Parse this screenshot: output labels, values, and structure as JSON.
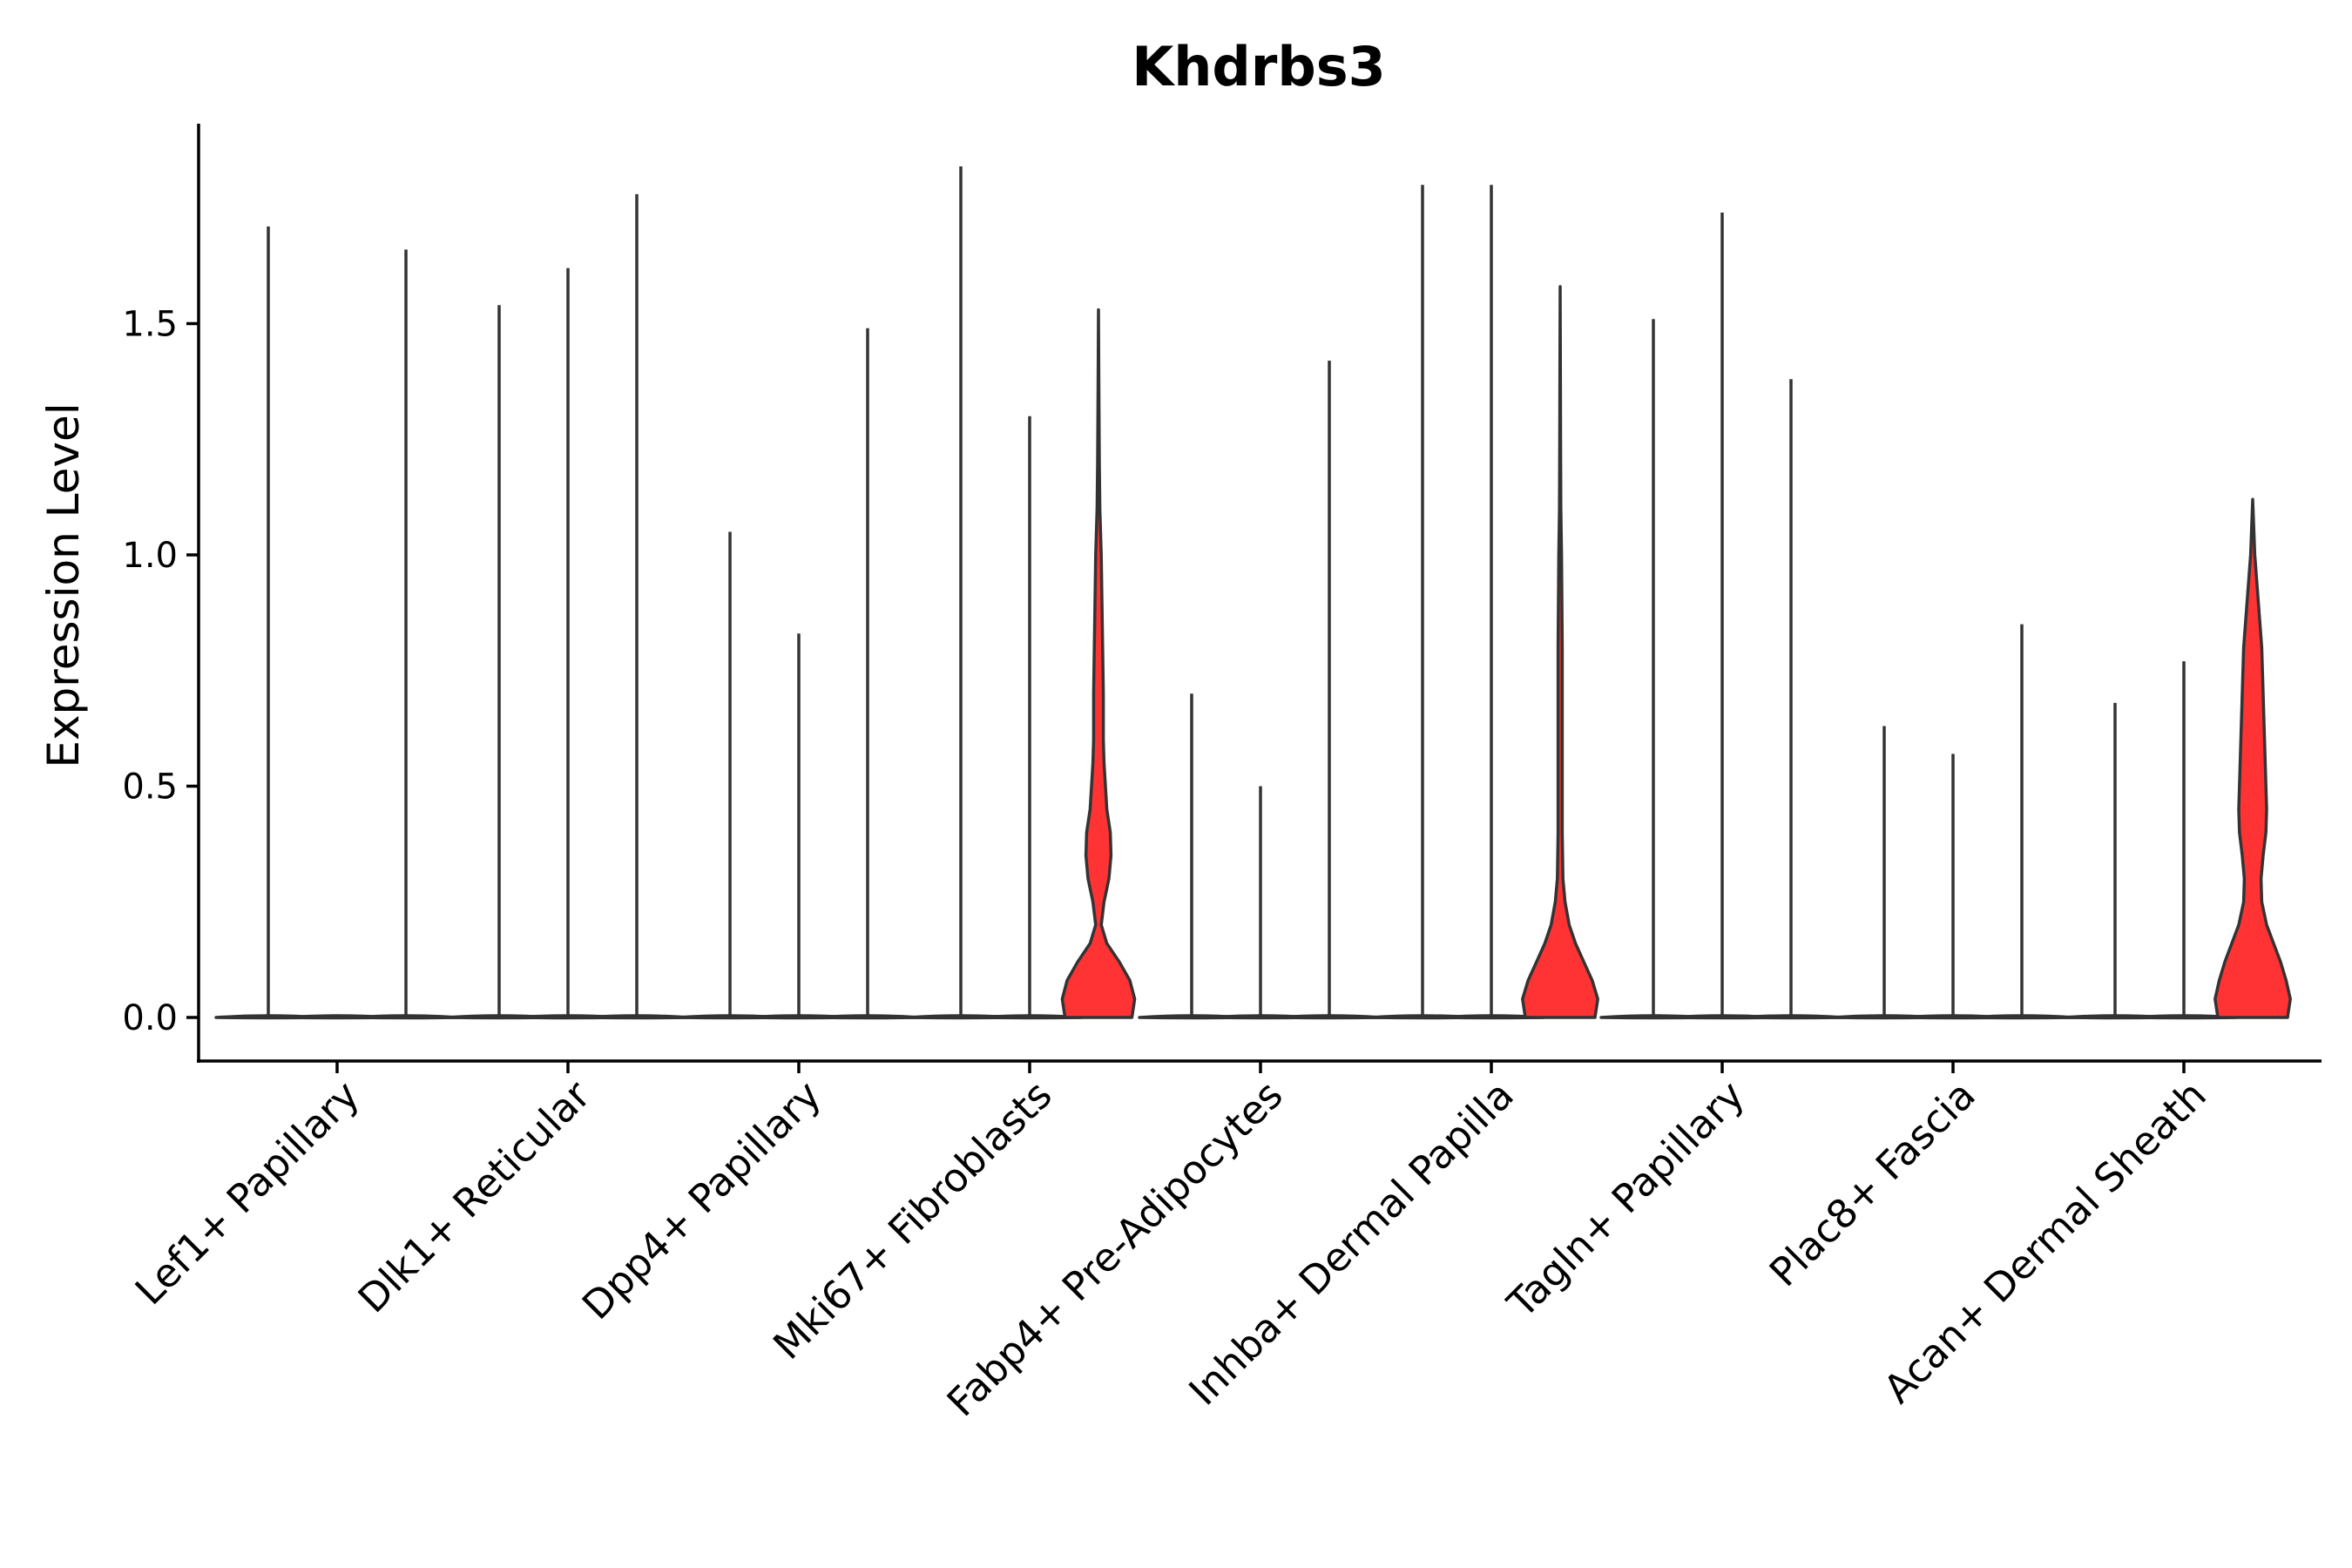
{
  "chart_data": {
    "type": "violin",
    "title": "Khdrbs3",
    "ylabel": "Expression Level",
    "xlabel": "",
    "ylim": [
      -0.095,
      1.95
    ],
    "yticks": [
      "0.0",
      "0.5",
      "1.0",
      "1.5"
    ],
    "ytick_values": [
      0,
      0.5,
      1.0,
      1.5
    ],
    "grid": false,
    "legend": "none",
    "colors": {
      "zero_violin": "#ffffff",
      "expressed_violin": "#ff3333",
      "outline": "#333333"
    },
    "categories": [
      "Lef1+ Papillary",
      "Dlk1+ Reticular",
      "Dpp4+ Papillary",
      "Mki67+ Fibroblasts",
      "Fabp4+ Pre-Adipocytes",
      "Inhba+ Dermal Papilla",
      "Tagln+ Papillary",
      "Plac8+ Fascia",
      "Acan+ Dermal Sheath"
    ],
    "violins": [
      {
        "category": 0,
        "offset": -1,
        "max": 1.71,
        "fill": false
      },
      {
        "category": 0,
        "offset": 0,
        "max": 0.0,
        "fill": false
      },
      {
        "category": 0,
        "offset": 1,
        "max": 1.66,
        "fill": false
      },
      {
        "category": 1,
        "offset": -1,
        "max": 1.54,
        "fill": false
      },
      {
        "category": 1,
        "offset": 0,
        "max": 1.62,
        "fill": false
      },
      {
        "category": 1,
        "offset": 1,
        "max": 1.78,
        "fill": false
      },
      {
        "category": 2,
        "offset": -1,
        "max": 1.05,
        "fill": false
      },
      {
        "category": 2,
        "offset": 0,
        "max": 0.83,
        "fill": false
      },
      {
        "category": 2,
        "offset": 1,
        "max": 1.49,
        "fill": false
      },
      {
        "category": 3,
        "offset": -1,
        "max": 1.84,
        "fill": false
      },
      {
        "category": 3,
        "offset": 0,
        "max": 1.3,
        "fill": false
      },
      {
        "category": 3,
        "offset": 1,
        "max": 1.53,
        "fill": true,
        "profile": [
          [
            0,
            0.48
          ],
          [
            0.04,
            0.52
          ],
          [
            0.08,
            0.45
          ],
          [
            0.12,
            0.3
          ],
          [
            0.16,
            0.12
          ],
          [
            0.2,
            0.04
          ],
          [
            0.25,
            0.08
          ],
          [
            0.3,
            0.15
          ],
          [
            0.35,
            0.18
          ],
          [
            0.4,
            0.17
          ],
          [
            0.45,
            0.12
          ],
          [
            0.5,
            0.1
          ],
          [
            0.55,
            0.08
          ],
          [
            0.6,
            0.07
          ],
          [
            0.7,
            0.07
          ],
          [
            0.8,
            0.06
          ],
          [
            0.9,
            0.05
          ],
          [
            1.0,
            0.04
          ],
          [
            1.1,
            0.02
          ],
          [
            1.2,
            0.012
          ],
          [
            1.35,
            0.006
          ],
          [
            1.53,
            0.0
          ]
        ]
      },
      {
        "category": 4,
        "offset": -1,
        "max": 0.7,
        "fill": false
      },
      {
        "category": 4,
        "offset": 0,
        "max": 0.5,
        "fill": false
      },
      {
        "category": 4,
        "offset": 1,
        "max": 1.42,
        "fill": false
      },
      {
        "category": 5,
        "offset": -1,
        "max": 1.8,
        "fill": false
      },
      {
        "category": 5,
        "offset": 0,
        "max": 1.8,
        "fill": false
      },
      {
        "category": 5,
        "offset": 1,
        "max": 1.58,
        "fill": true,
        "profile": [
          [
            0,
            0.5
          ],
          [
            0.04,
            0.54
          ],
          [
            0.08,
            0.46
          ],
          [
            0.12,
            0.34
          ],
          [
            0.16,
            0.22
          ],
          [
            0.2,
            0.13
          ],
          [
            0.25,
            0.07
          ],
          [
            0.3,
            0.04
          ],
          [
            0.4,
            0.03
          ],
          [
            0.6,
            0.03
          ],
          [
            0.8,
            0.03
          ],
          [
            0.9,
            0.025
          ],
          [
            1.0,
            0.02
          ],
          [
            1.1,
            0.01
          ],
          [
            1.25,
            0.006
          ],
          [
            1.4,
            0.004
          ],
          [
            1.58,
            0.0
          ]
        ]
      },
      {
        "category": 6,
        "offset": -1,
        "max": 1.51,
        "fill": false
      },
      {
        "category": 6,
        "offset": 0,
        "max": 1.74,
        "fill": false
      },
      {
        "category": 6,
        "offset": 1,
        "max": 1.38,
        "fill": false
      },
      {
        "category": 7,
        "offset": -1,
        "max": 0.63,
        "fill": false
      },
      {
        "category": 7,
        "offset": 0,
        "max": 0.57,
        "fill": false
      },
      {
        "category": 7,
        "offset": 1,
        "max": 0.85,
        "fill": false
      },
      {
        "category": 8,
        "offset": -1,
        "max": 0.68,
        "fill": false
      },
      {
        "category": 8,
        "offset": 0,
        "max": 0.77,
        "fill": false
      },
      {
        "category": 8,
        "offset": 1,
        "max": 1.12,
        "fill": true,
        "profile": [
          [
            0,
            0.5
          ],
          [
            0.04,
            0.54
          ],
          [
            0.08,
            0.48
          ],
          [
            0.12,
            0.4
          ],
          [
            0.16,
            0.3
          ],
          [
            0.2,
            0.2
          ],
          [
            0.25,
            0.13
          ],
          [
            0.3,
            0.12
          ],
          [
            0.35,
            0.15
          ],
          [
            0.4,
            0.19
          ],
          [
            0.45,
            0.2
          ],
          [
            0.5,
            0.19
          ],
          [
            0.6,
            0.17
          ],
          [
            0.7,
            0.15
          ],
          [
            0.8,
            0.13
          ],
          [
            0.9,
            0.08
          ],
          [
            1.0,
            0.03
          ],
          [
            1.06,
            0.015
          ],
          [
            1.12,
            0.0
          ]
        ]
      }
    ]
  }
}
